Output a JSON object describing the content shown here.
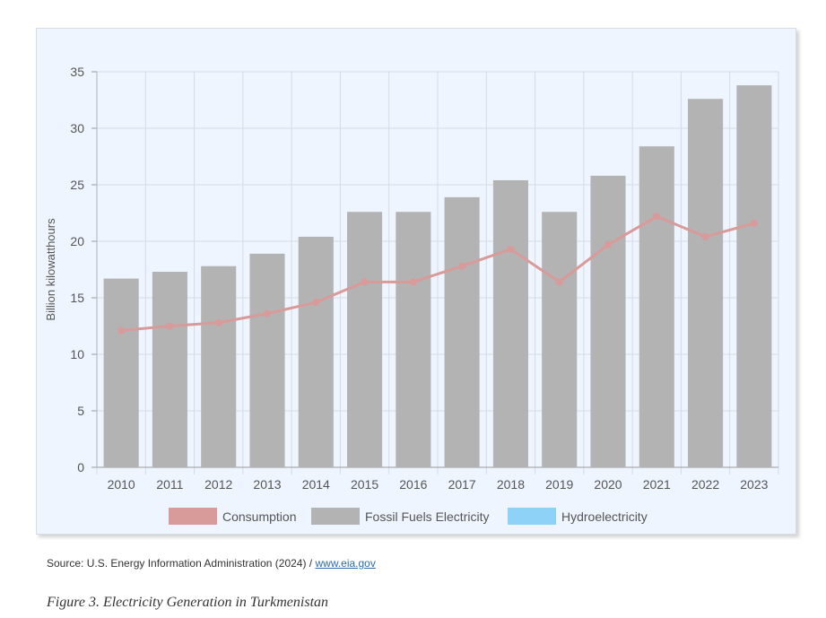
{
  "chart_data": {
    "type": "bar",
    "categories": [
      "2010",
      "2011",
      "2012",
      "2013",
      "2014",
      "2015",
      "2016",
      "2017",
      "2018",
      "2019",
      "2020",
      "2021",
      "2022",
      "2023"
    ],
    "series": [
      {
        "name": "Consumption",
        "type": "line",
        "color": "#d99a9a",
        "values": [
          12.1,
          12.5,
          12.8,
          13.6,
          14.6,
          16.4,
          16.4,
          17.8,
          19.3,
          16.4,
          19.7,
          22.2,
          20.4,
          21.6
        ]
      },
      {
        "name": "Fossil Fuels Electricity",
        "type": "bar",
        "color": "#b4b3b3",
        "values": [
          16.7,
          17.3,
          17.8,
          18.9,
          20.4,
          22.6,
          22.6,
          23.9,
          25.4,
          22.6,
          25.8,
          28.4,
          32.6,
          33.8
        ]
      },
      {
        "name": "Hydroelectricity",
        "type": "bar",
        "color": "#8ed3f7",
        "values": [
          0,
          0,
          0,
          0,
          0,
          0,
          0,
          0,
          0,
          0,
          0,
          0,
          0,
          0
        ]
      }
    ],
    "ylabel": "Billion kilowatthours",
    "xlabel": "",
    "ylim": [
      0,
      35
    ],
    "yticks": [
      0,
      5,
      10,
      15,
      20,
      25,
      30,
      35
    ],
    "grid": true,
    "legend": "bottom"
  },
  "source": {
    "prefix": "Source: U.S. Energy Information Administration (2024) / ",
    "link_text": "www.eia.gov"
  },
  "caption": "Figure 3. Electricity Generation in  Turkmenistan"
}
